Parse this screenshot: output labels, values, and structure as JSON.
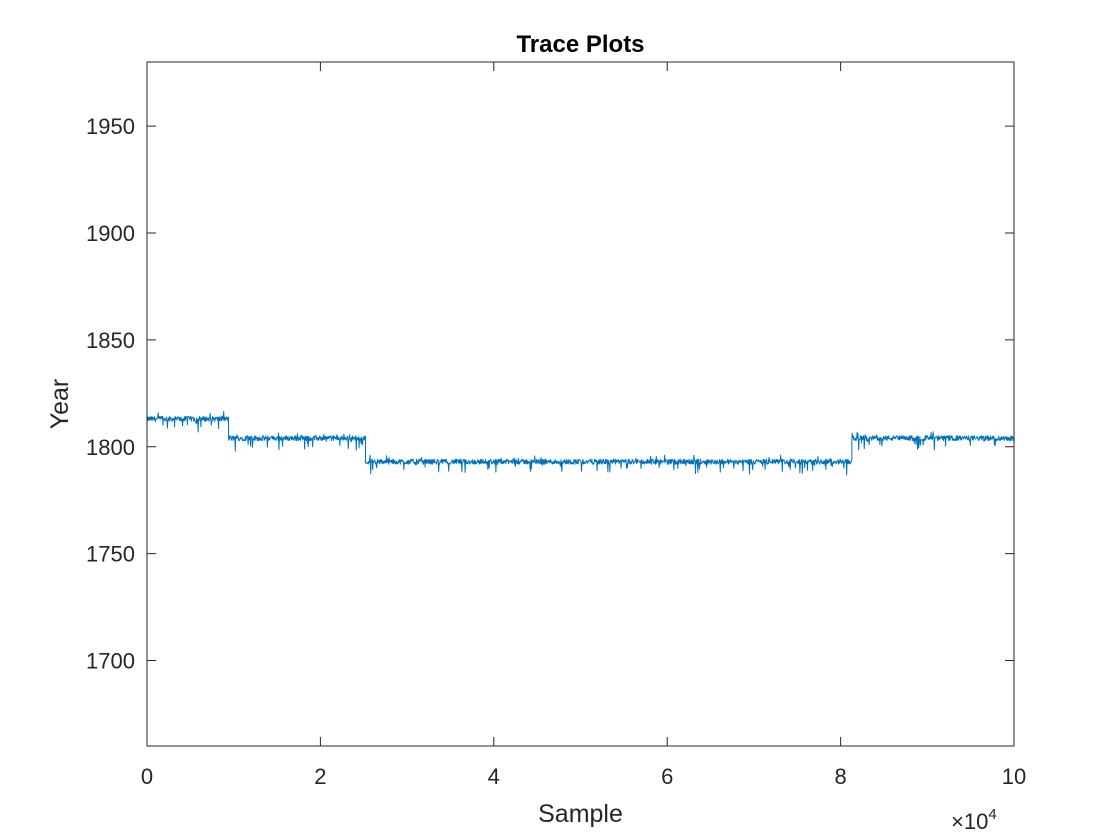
{
  "chart_data": {
    "type": "line",
    "title": "Trace Plots",
    "xlabel": "Sample",
    "ylabel": "Year",
    "x_exponent_base": "×10",
    "x_exponent_power": "4",
    "xlim": [
      0,
      10
    ],
    "ylim": [
      1660,
      1980
    ],
    "xticks": [
      0,
      2,
      4,
      6,
      8,
      10
    ],
    "yticks": [
      1700,
      1750,
      1800,
      1850,
      1900,
      1950
    ],
    "grid": false,
    "box": true,
    "series": [
      {
        "color": "#0072BD",
        "segments": [
          {
            "x_start": 0.0,
            "x_end": 0.94,
            "level": 1813
          },
          {
            "x_start": 0.94,
            "x_end": 2.52,
            "level": 1804
          },
          {
            "x_start": 2.52,
            "x_end": 8.13,
            "level": 1793
          },
          {
            "x_start": 8.13,
            "x_end": 10.0,
            "level": 1804
          }
        ]
      }
    ]
  }
}
